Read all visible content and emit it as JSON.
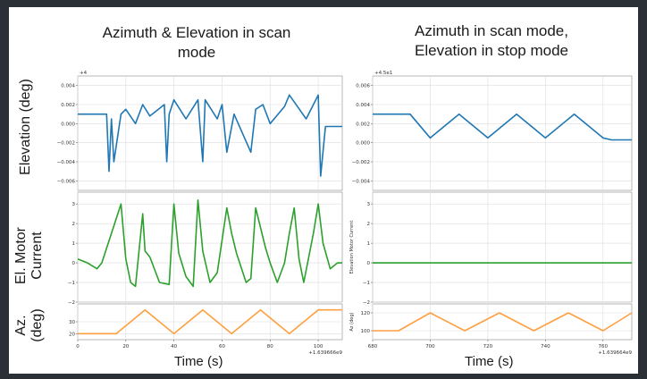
{
  "left_title_line1": "Azimuth & Elevation in scan",
  "left_title_line2": "mode",
  "right_title_line1": "Azimuth in scan mode,",
  "right_title_line2": "Elevation in stop mode",
  "left_ylabel_top": "Elevation (deg)",
  "left_ylabel_mid_line1": "El. Motor",
  "left_ylabel_mid_line2": "Current",
  "left_ylabel_bot_line1": "Az.",
  "left_ylabel_bot_line2": "(deg)",
  "left_xlabel": "Time (s)",
  "right_xlabel": "Time (s)",
  "colors": {
    "elevation": "#1f77b4",
    "current": "#2ca02c",
    "azimuth": "#ff9f40"
  },
  "chart_data": [
    {
      "type": "line",
      "panel": "left-elevation",
      "offset_label": "+4",
      "ylim": [
        -0.007,
        0.005
      ],
      "yticks": [
        "0.004",
        "0.002",
        "0.000",
        "−0.002",
        "−0.004",
        "−0.006"
      ],
      "yticks_values": [
        0.004,
        0.002,
        0.0,
        -0.002,
        -0.004,
        -0.006
      ],
      "x": [
        0,
        8,
        12,
        13,
        14,
        15,
        18,
        20,
        24,
        27,
        30,
        36,
        37,
        38,
        40,
        45,
        50,
        52,
        53,
        58,
        60,
        62,
        65,
        72,
        74,
        77,
        80,
        86,
        88,
        95,
        100,
        101,
        103,
        108,
        110
      ],
      "y": [
        0.001,
        0.001,
        0.001,
        -0.005,
        0.0005,
        -0.004,
        0.001,
        0.0015,
        0.0,
        0.002,
        0.0008,
        0.002,
        -0.004,
        0.001,
        0.0025,
        0.0005,
        0.0025,
        -0.004,
        0.0025,
        0.0005,
        0.002,
        -0.003,
        0.001,
        -0.003,
        0.0015,
        0.002,
        0.0,
        0.0018,
        0.003,
        0.0005,
        0.003,
        -0.0055,
        -0.0003,
        -0.0003,
        -0.0003
      ]
    },
    {
      "type": "line",
      "panel": "left-current",
      "ylim": [
        -2,
        3.6
      ],
      "yticks": [
        "3",
        "2",
        "1",
        "0",
        "−1",
        "−2"
      ],
      "yticks_values": [
        3,
        2,
        1,
        0,
        -1,
        -2
      ],
      "x": [
        0,
        4,
        8,
        10,
        14,
        18,
        20,
        22,
        24,
        27,
        28,
        30,
        34,
        38,
        40,
        42,
        45,
        48,
        50,
        52,
        55,
        58,
        62,
        64,
        66,
        70,
        72,
        74,
        78,
        80,
        83,
        86,
        88,
        90,
        92,
        94,
        98,
        100,
        102,
        105,
        108,
        110
      ],
      "y": [
        0.2,
        0,
        -0.3,
        0,
        1.5,
        3.0,
        0.2,
        -1.0,
        -1.2,
        2.5,
        0.6,
        0.3,
        -1.0,
        -1.1,
        3.0,
        0.5,
        -0.7,
        -1.2,
        3.2,
        0.6,
        -1.0,
        -0.5,
        2.8,
        1.5,
        0.5,
        -1.0,
        -0.8,
        2.8,
        0.8,
        0.0,
        -1.0,
        0.0,
        1.5,
        2.8,
        0.2,
        -1.0,
        1.5,
        3.0,
        1.0,
        -0.3,
        0.0,
        0.0
      ]
    },
    {
      "type": "line",
      "panel": "left-azimuth",
      "offset_label": "+1.639666e9",
      "xlim": [
        0,
        110
      ],
      "ylim": [
        15,
        45
      ],
      "xticks": [
        "0",
        "20",
        "40",
        "60",
        "80",
        "100"
      ],
      "xticks_values": [
        0,
        20,
        40,
        60,
        80,
        100
      ],
      "yticks": [
        "30",
        "20"
      ],
      "yticks_values": [
        30,
        20
      ],
      "x": [
        0,
        16,
        28,
        40,
        52,
        64,
        76,
        88,
        100,
        110
      ],
      "y": [
        20,
        20,
        40,
        20,
        40,
        20,
        40,
        20,
        40,
        40
      ]
    },
    {
      "type": "line",
      "panel": "right-elevation",
      "offset_label": "+4.5e1",
      "ylim": [
        -0.005,
        0.007
      ],
      "yticks": [
        "0.006",
        "0.004",
        "0.002",
        "0.000",
        "−0.002",
        "−0.004"
      ],
      "yticks_values": [
        0.006,
        0.004,
        0.002,
        0.0,
        -0.002,
        -0.004
      ],
      "x": [
        680,
        693,
        700,
        710,
        720,
        730,
        740,
        750,
        760,
        763,
        770
      ],
      "y": [
        0.003,
        0.003,
        0.0005,
        0.003,
        0.0005,
        0.003,
        0.0005,
        0.003,
        0.0005,
        0.0003,
        0.0003
      ]
    },
    {
      "type": "line",
      "panel": "right-current",
      "ylabel": "Elevation Motor Current",
      "ylim": [
        -2,
        3.6
      ],
      "yticks": [
        "3",
        "2",
        "1",
        "0",
        "−1",
        "−2"
      ],
      "yticks_values": [
        3,
        2,
        1,
        0,
        -1,
        -2
      ],
      "x": [
        680,
        770
      ],
      "y": [
        0,
        0
      ]
    },
    {
      "type": "line",
      "panel": "right-azimuth",
      "ylabel": "Az (deg)",
      "offset_label": "+1.639664e9",
      "xlim": [
        680,
        770
      ],
      "ylim": [
        90,
        130
      ],
      "xticks": [
        "680",
        "700",
        "720",
        "740",
        "760"
      ],
      "xticks_values": [
        680,
        700,
        720,
        740,
        760
      ],
      "yticks": [
        "120",
        "100"
      ],
      "yticks_values": [
        120,
        100
      ],
      "x": [
        680,
        689,
        700,
        712,
        724,
        736,
        748,
        760,
        770
      ],
      "y": [
        100,
        100,
        120,
        100,
        120,
        100,
        120,
        100,
        120
      ]
    }
  ]
}
